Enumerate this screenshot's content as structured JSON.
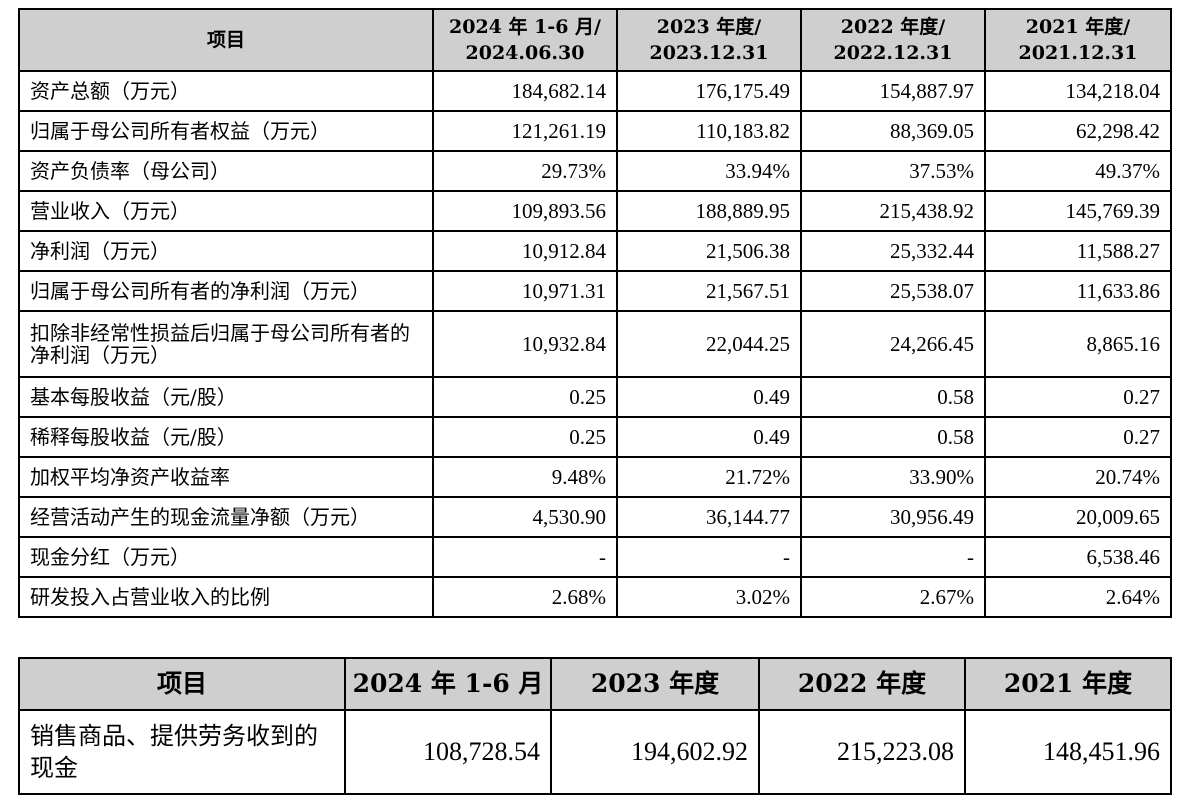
{
  "table1": {
    "headers": [
      {
        "line1": "项目",
        "line2": ""
      },
      {
        "line1": "2024 年 1-6 月/",
        "line2": "2024.06.30"
      },
      {
        "line1": "2023 年度/",
        "line2": "2023.12.31"
      },
      {
        "line1": "2022 年度/",
        "line2": "2022.12.31"
      },
      {
        "line1": "2021 年度/",
        "line2": "2021.12.31"
      }
    ],
    "rows": [
      {
        "item": "资产总额（万元）",
        "values": [
          "184,682.14",
          "176,175.49",
          "154,887.97",
          "134,218.04"
        ]
      },
      {
        "item": "归属于母公司所有者权益（万元）",
        "values": [
          "121,261.19",
          "110,183.82",
          "88,369.05",
          "62,298.42"
        ]
      },
      {
        "item": "资产负债率（母公司）",
        "values": [
          "29.73%",
          "33.94%",
          "37.53%",
          "49.37%"
        ]
      },
      {
        "item": "营业收入（万元）",
        "values": [
          "109,893.56",
          "188,889.95",
          "215,438.92",
          "145,769.39"
        ]
      },
      {
        "item": "净利润（万元）",
        "values": [
          "10,912.84",
          "21,506.38",
          "25,332.44",
          "11,588.27"
        ]
      },
      {
        "item": "归属于母公司所有者的净利润（万元）",
        "values": [
          "10,971.31",
          "21,567.51",
          "25,538.07",
          "11,633.86"
        ]
      },
      {
        "item": "扣除非经常性损益后归属于母公司所有者的净利润（万元）",
        "values": [
          "10,932.84",
          "22,044.25",
          "24,266.45",
          "8,865.16"
        ]
      },
      {
        "item": "基本每股收益（元/股）",
        "values": [
          "0.25",
          "0.49",
          "0.58",
          "0.27"
        ]
      },
      {
        "item": "稀释每股收益（元/股）",
        "values": [
          "0.25",
          "0.49",
          "0.58",
          "0.27"
        ]
      },
      {
        "item": "加权平均净资产收益率",
        "values": [
          "9.48%",
          "21.72%",
          "33.90%",
          "20.74%"
        ]
      },
      {
        "item": "经营活动产生的现金流量净额（万元）",
        "values": [
          "4,530.90",
          "36,144.77",
          "30,956.49",
          "20,009.65"
        ]
      },
      {
        "item": "现金分红（万元）",
        "values": [
          "-",
          "-",
          "-",
          "6,538.46"
        ]
      },
      {
        "item": "研发投入占营业收入的比例",
        "values": [
          "2.68%",
          "3.02%",
          "2.67%",
          "2.64%"
        ]
      }
    ]
  },
  "table2": {
    "headers": [
      "项目",
      "2024 年 1-6 月",
      "2023 年度",
      "2022 年度",
      "2021 年度"
    ],
    "rows": [
      {
        "item": "销售商品、提供劳务收到的现金",
        "values": [
          "108,728.54",
          "194,602.92",
          "215,223.08",
          "148,451.96"
        ]
      }
    ]
  }
}
